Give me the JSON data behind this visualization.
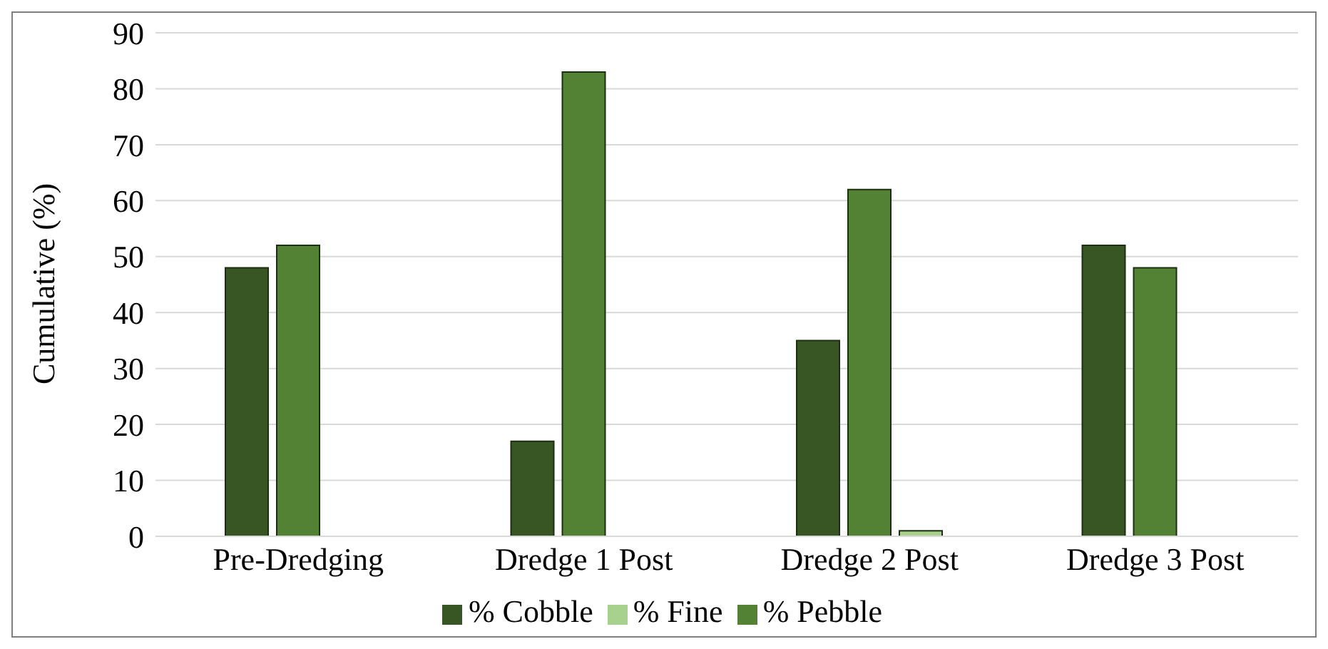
{
  "chart_data": {
    "type": "bar",
    "ylabel": "Cumulative (%)",
    "categories": [
      "Pre-Dredging",
      "Dredge 1 Post",
      "Dredge 2 Post",
      "Dredge 3 Post"
    ],
    "series": [
      {
        "name": "% Cobble",
        "color": "#375623",
        "values": [
          48,
          17,
          35,
          52
        ]
      },
      {
        "name": "% Pebble",
        "color": "#548235",
        "values": [
          52,
          83,
          62,
          48
        ]
      },
      {
        "name": "% Fine",
        "color": "#a9d18e",
        "values": [
          0,
          0,
          1,
          0
        ]
      }
    ],
    "ylim": [
      0,
      90
    ],
    "yticks": [
      0,
      10,
      20,
      30,
      40,
      50,
      60,
      70,
      80,
      90
    ],
    "grid": "y",
    "legend": "bottom"
  }
}
